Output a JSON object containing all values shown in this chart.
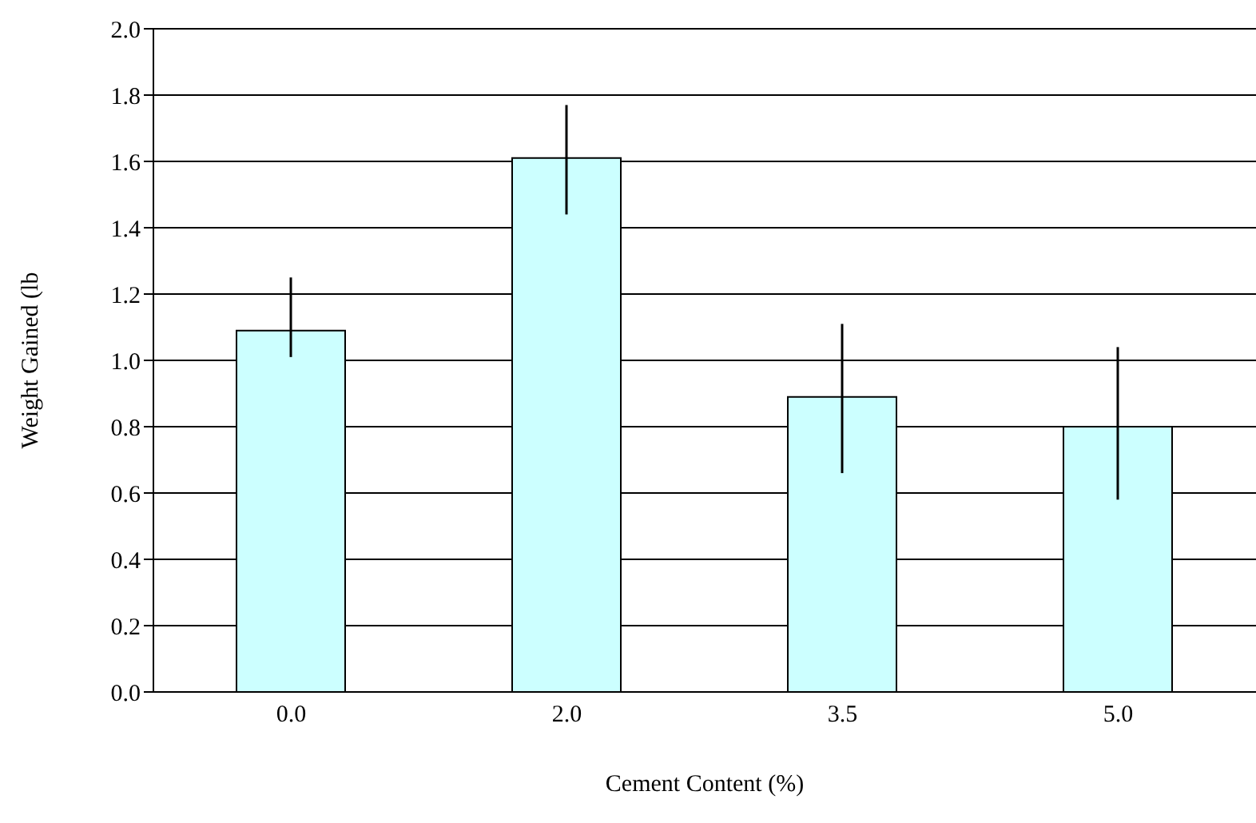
{
  "chart_data": {
    "type": "bar",
    "xlabel": "Cement Content (%)",
    "ylabel": "Weight Gained (lb",
    "categories": [
      "0.0",
      "2.0",
      "3.5",
      "5.0"
    ],
    "values": [
      1.09,
      1.61,
      0.89,
      0.8
    ],
    "errors": [
      [
        1.01,
        1.25
      ],
      [
        1.44,
        1.77
      ],
      [
        0.66,
        1.11
      ],
      [
        0.58,
        1.04
      ]
    ],
    "color": "#ccffff",
    "ylim": [
      0,
      2.0
    ],
    "yticks": [
      {
        "value": 0,
        "label": "0.0"
      },
      {
        "value": 0.2,
        "label": "0.2"
      },
      {
        "value": 0.4,
        "label": "0.4"
      },
      {
        "value": 0.6,
        "label": "0.6"
      },
      {
        "value": 0.8,
        "label": "0.8"
      },
      {
        "value": 1.0,
        "label": "1.0"
      },
      {
        "value": 1.2,
        "label": "1.2"
      },
      {
        "value": 1.4,
        "label": "1.4"
      },
      {
        "value": 1.6,
        "label": "1.6"
      },
      {
        "value": 1.8,
        "label": "1.8"
      },
      {
        "value": 2.0,
        "label": "2.0"
      }
    ],
    "grid": "y"
  }
}
